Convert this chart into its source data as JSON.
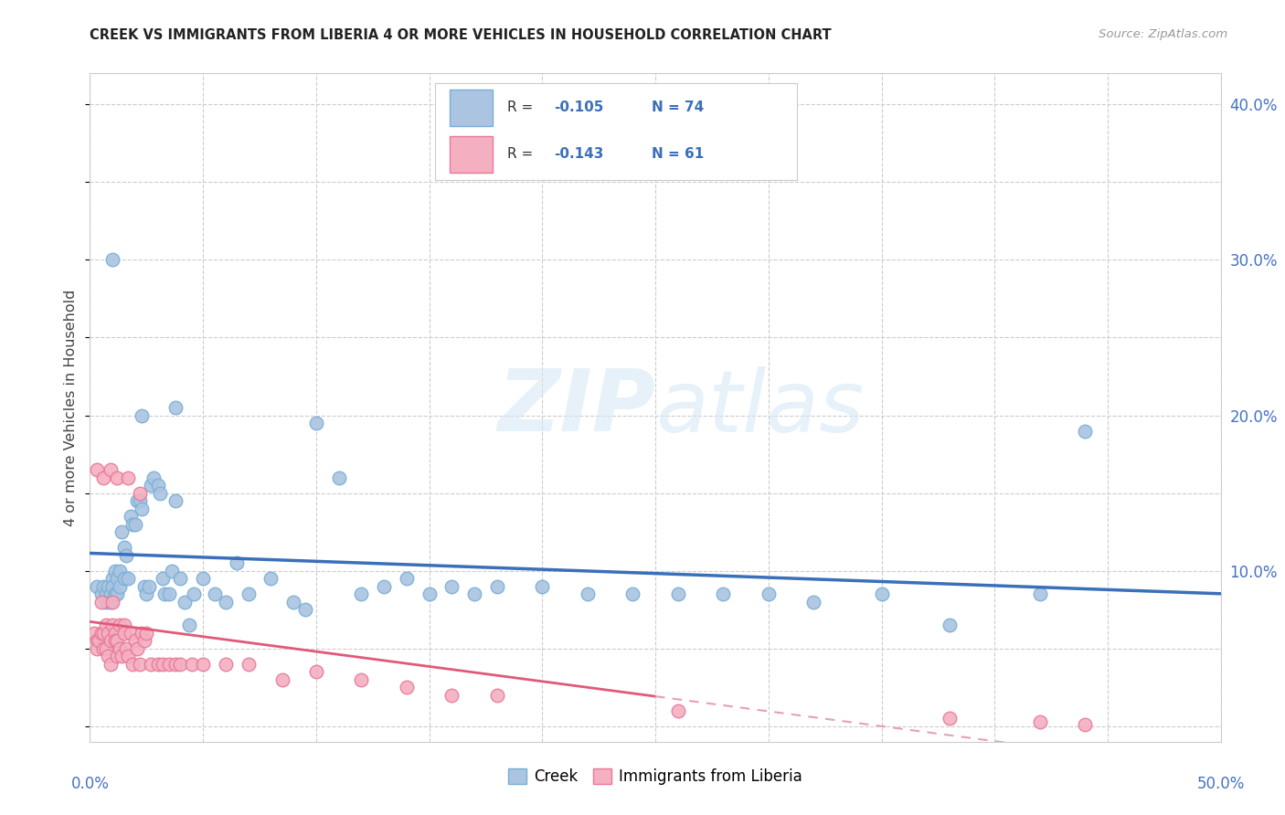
{
  "title": "CREEK VS IMMIGRANTS FROM LIBERIA 4 OR MORE VEHICLES IN HOUSEHOLD CORRELATION CHART",
  "source": "Source: ZipAtlas.com",
  "ylabel": "4 or more Vehicles in Household",
  "xlim": [
    0.0,
    0.5
  ],
  "ylim": [
    -0.01,
    0.42
  ],
  "xticks": [
    0.0,
    0.05,
    0.1,
    0.15,
    0.2,
    0.25,
    0.3,
    0.35,
    0.4,
    0.45,
    0.5
  ],
  "yticks": [
    0.0,
    0.05,
    0.1,
    0.15,
    0.2,
    0.25,
    0.3,
    0.35,
    0.4
  ],
  "xticklabels": [
    "0.0%",
    "",
    "",
    "",
    "",
    "",
    "",
    "",
    "",
    "",
    "50.0%"
  ],
  "yticklabels_right": [
    "",
    "",
    "10.0%",
    "",
    "20.0%",
    "",
    "30.0%",
    "",
    "40.0%"
  ],
  "creek_color": "#aac4e2",
  "creek_edge": "#7aafd4",
  "liberia_color": "#f4afc0",
  "liberia_edge": "#e8799a",
  "creek_R": -0.105,
  "creek_N": 74,
  "liberia_R": -0.143,
  "liberia_N": 61,
  "creek_line_color": "#3a6fba",
  "liberia_solid_color": "#e05a78",
  "liberia_dash_color": "#e8a0b0",
  "legend_R_color": "#3a6fba",
  "legend_text_color": "#333333",
  "tick_color": "#4472c4",
  "background_color": "#ffffff",
  "watermark": "ZIPatlas",
  "creek_points_x": [
    0.003,
    0.005,
    0.006,
    0.007,
    0.007,
    0.008,
    0.009,
    0.009,
    0.01,
    0.01,
    0.011,
    0.011,
    0.012,
    0.012,
    0.013,
    0.013,
    0.014,
    0.015,
    0.015,
    0.016,
    0.017,
    0.018,
    0.019,
    0.02,
    0.021,
    0.022,
    0.023,
    0.024,
    0.025,
    0.026,
    0.027,
    0.028,
    0.03,
    0.031,
    0.032,
    0.033,
    0.035,
    0.036,
    0.038,
    0.04,
    0.042,
    0.044,
    0.046,
    0.05,
    0.055,
    0.06,
    0.065,
    0.07,
    0.08,
    0.09,
    0.095,
    0.1,
    0.11,
    0.12,
    0.13,
    0.14,
    0.15,
    0.16,
    0.17,
    0.18,
    0.2,
    0.22,
    0.24,
    0.26,
    0.28,
    0.3,
    0.32,
    0.35,
    0.38,
    0.42,
    0.44,
    0.01,
    0.023,
    0.038
  ],
  "creek_points_y": [
    0.09,
    0.085,
    0.09,
    0.085,
    0.08,
    0.09,
    0.085,
    0.08,
    0.095,
    0.09,
    0.1,
    0.085,
    0.095,
    0.085,
    0.1,
    0.09,
    0.125,
    0.115,
    0.095,
    0.11,
    0.095,
    0.135,
    0.13,
    0.13,
    0.145,
    0.145,
    0.14,
    0.09,
    0.085,
    0.09,
    0.155,
    0.16,
    0.155,
    0.15,
    0.095,
    0.085,
    0.085,
    0.1,
    0.145,
    0.095,
    0.08,
    0.065,
    0.085,
    0.095,
    0.085,
    0.08,
    0.105,
    0.085,
    0.095,
    0.08,
    0.075,
    0.195,
    0.16,
    0.085,
    0.09,
    0.095,
    0.085,
    0.09,
    0.085,
    0.09,
    0.09,
    0.085,
    0.085,
    0.085,
    0.085,
    0.085,
    0.08,
    0.085,
    0.065,
    0.085,
    0.19,
    0.3,
    0.2,
    0.205
  ],
  "liberia_points_x": [
    0.002,
    0.003,
    0.003,
    0.004,
    0.005,
    0.005,
    0.006,
    0.006,
    0.007,
    0.007,
    0.008,
    0.008,
    0.009,
    0.009,
    0.01,
    0.01,
    0.011,
    0.011,
    0.012,
    0.012,
    0.013,
    0.013,
    0.014,
    0.015,
    0.015,
    0.016,
    0.017,
    0.018,
    0.019,
    0.02,
    0.021,
    0.022,
    0.023,
    0.024,
    0.025,
    0.027,
    0.03,
    0.032,
    0.035,
    0.038,
    0.04,
    0.045,
    0.05,
    0.06,
    0.07,
    0.085,
    0.1,
    0.12,
    0.14,
    0.16,
    0.18,
    0.26,
    0.38,
    0.42,
    0.44,
    0.003,
    0.006,
    0.009,
    0.012,
    0.017,
    0.022
  ],
  "liberia_points_y": [
    0.06,
    0.055,
    0.05,
    0.055,
    0.08,
    0.06,
    0.06,
    0.05,
    0.065,
    0.05,
    0.06,
    0.045,
    0.055,
    0.04,
    0.065,
    0.08,
    0.06,
    0.055,
    0.055,
    0.045,
    0.065,
    0.05,
    0.045,
    0.065,
    0.06,
    0.05,
    0.045,
    0.06,
    0.04,
    0.055,
    0.05,
    0.04,
    0.06,
    0.055,
    0.06,
    0.04,
    0.04,
    0.04,
    0.04,
    0.04,
    0.04,
    0.04,
    0.04,
    0.04,
    0.04,
    0.03,
    0.035,
    0.03,
    0.025,
    0.02,
    0.02,
    0.01,
    0.005,
    0.003,
    0.001,
    0.165,
    0.16,
    0.165,
    0.16,
    0.16,
    0.15
  ]
}
